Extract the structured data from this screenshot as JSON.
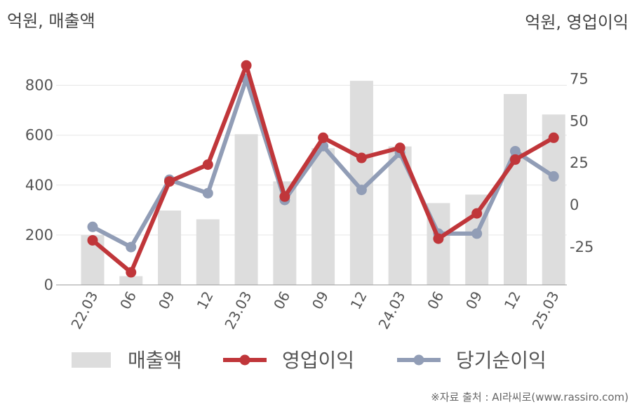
{
  "chart_data": {
    "type": "bar+line",
    "left_unit_label": "억원, 매출액",
    "right_unit_label": "억원, 영업이익",
    "categories": [
      "22.03",
      "06",
      "09",
      "12",
      "23.03",
      "06",
      "09",
      "12",
      "24.03",
      "06",
      "09",
      "12",
      "25.03"
    ],
    "left_axis": {
      "ticks": [
        0,
        200,
        400,
        600,
        800
      ],
      "range": [
        0,
        900
      ]
    },
    "right_axis": {
      "ticks": [
        -25,
        0,
        25,
        50,
        75
      ],
      "range": [
        -47.5,
        86
      ]
    },
    "series": [
      {
        "name": "매출액",
        "kind": "bar",
        "axis": "left",
        "color": "#dddddd",
        "values": [
          200,
          35,
          298,
          263,
          604,
          415,
          548,
          818,
          555,
          328,
          362,
          765,
          683
        ]
      },
      {
        "name": "영업이익",
        "kind": "line",
        "axis": "right",
        "color": "#c0363a",
        "values": [
          -21,
          -40,
          14,
          24,
          83,
          5,
          40,
          28,
          34,
          -20,
          -5,
          27,
          40
        ]
      },
      {
        "name": "당기순이익",
        "kind": "line",
        "axis": "right",
        "color": "#919db6",
        "values": [
          -13,
          -25,
          15,
          7,
          75,
          3,
          35,
          9,
          31,
          -17,
          -17,
          32,
          17
        ]
      }
    ],
    "legend_position": "bottom",
    "grid": true
  },
  "source_text": "※자료 출처 : AI라씨로(www.rassiro.com)"
}
